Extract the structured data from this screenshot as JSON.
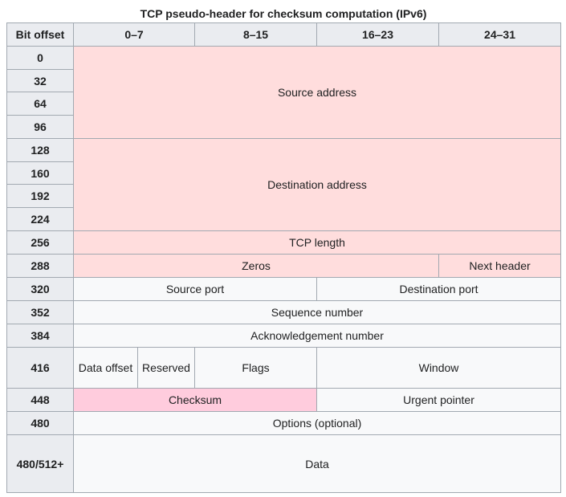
{
  "caption": "TCP pseudo-header for checksum computation (IPv6)",
  "header": {
    "bit_offset": "Bit offset",
    "cols": [
      "0–7",
      "8–15",
      "16–23",
      "24–31"
    ]
  },
  "offsets": [
    "0",
    "32",
    "64",
    "96",
    "128",
    "160",
    "192",
    "224",
    "256",
    "288",
    "320",
    "352",
    "384",
    "416",
    "448",
    "480",
    "480/512+"
  ],
  "fields": {
    "source_address": "Source address",
    "destination_address": "Destination address",
    "tcp_length": "TCP length",
    "zeros": "Zeros",
    "next_header": "Next header",
    "source_port": "Source port",
    "destination_port": "Destination port",
    "sequence_number": "Sequence number",
    "ack_number": "Acknowledgement number",
    "data_offset": "Data offset",
    "reserved": "Reserved",
    "flags": "Flags",
    "window": "Window",
    "checksum": "Checksum",
    "urgent_pointer": "Urgent pointer",
    "options": "Options (optional)",
    "data": "Data"
  },
  "colors": {
    "pseudo_header": "#ffdddd",
    "checksum": "#ffccdd",
    "header_bg": "#eaecf0",
    "cell_bg": "#f8f9fa",
    "border": "#a2a9b1"
  }
}
